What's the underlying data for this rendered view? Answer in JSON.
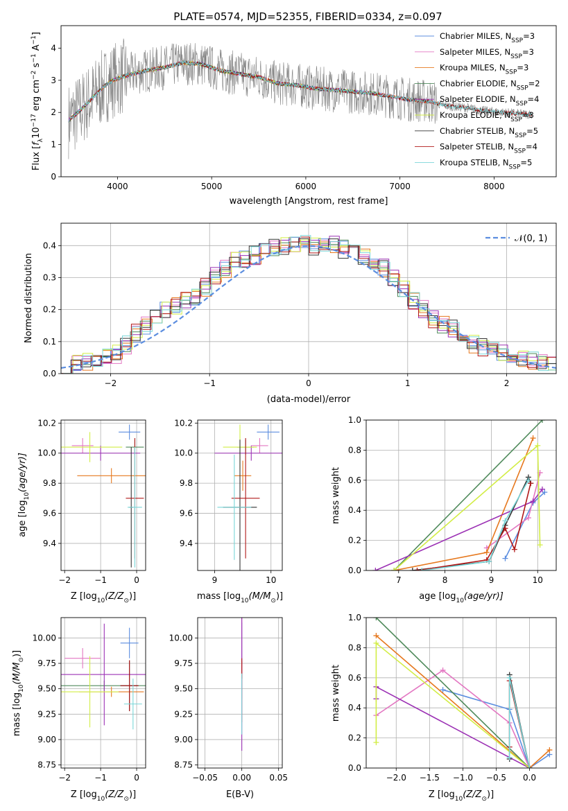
{
  "title": "PLATE=0574, MJD=52355, FIBERID=0334, z=0.097",
  "colors": {
    "chabrier_miles": "#5b8ddf",
    "salpeter_miles": "#e377c2",
    "kroupa_miles": "#e6781e",
    "chabrier_elodie": "#4f8a5b",
    "salpeter_elodie": "#9b30b4",
    "kroupa_elodie": "#d2ed45",
    "chabrier_stelib": "#333333",
    "salpeter_stelib": "#b01818",
    "kroupa_stelib": "#79d6d8",
    "data": "#808080",
    "normal": "#5b8ddf"
  },
  "legend": [
    {
      "key": "chabrier_miles",
      "label": "Chabrier MILES, N",
      "sub": "SSP",
      "suffix": "=3"
    },
    {
      "key": "salpeter_miles",
      "label": "Salpeter MILES, N",
      "sub": "SSP",
      "suffix": "=3"
    },
    {
      "key": "kroupa_miles",
      "label": "Kroupa MILES, N",
      "sub": "SSP",
      "suffix": "=3"
    },
    {
      "key": "chabrier_elodie",
      "label": "Chabrier ELODIE, N",
      "sub": "SSP",
      "suffix": "=2"
    },
    {
      "key": "salpeter_elodie",
      "label": "Salpeter ELODIE, N",
      "sub": "SSP",
      "suffix": "=4"
    },
    {
      "key": "kroupa_elodie",
      "label": "Kroupa ELODIE, N",
      "sub": "SSP",
      "suffix": "=3"
    },
    {
      "key": "chabrier_stelib",
      "label": "Chabrier STELIB, N",
      "sub": "SSP",
      "suffix": "=5"
    },
    {
      "key": "salpeter_stelib",
      "label": "Salpeter STELIB, N",
      "sub": "SSP",
      "suffix": "=4"
    },
    {
      "key": "kroupa_stelib",
      "label": "Kroupa STELIB, N",
      "sub": "SSP",
      "suffix": "=5"
    }
  ],
  "chart_data": [
    {
      "id": "spectrum",
      "type": "line",
      "title": "PLATE=0574, MJD=52355, FIBERID=0334, z=0.097",
      "xlabel": "wavelength [Angstrom, rest frame]",
      "ylabel_main": "Flux [",
      "ylabel_f": "f",
      "ylabel_sub": "λ",
      "ylabel_ten": "10",
      "ylabel_exp": "−17",
      "ylabel_rest": " erg cm",
      "ylabel_exp2": "−2",
      "ylabel_rest2": " s",
      "ylabel_exp3": "−1",
      "ylabel_rest3": " A",
      "ylabel_exp4": "−1",
      "ylabel_end": "]",
      "xlim": [
        3400,
        8660
      ],
      "ylim": [
        0,
        4.7
      ],
      "xticks": [
        4000,
        5000,
        6000,
        7000,
        8000
      ],
      "yticks": [
        0,
        1,
        2,
        3,
        4
      ],
      "continuum": [
        [
          3480,
          1.75
        ],
        [
          3560,
          1.95
        ],
        [
          3650,
          2.2
        ],
        [
          3750,
          2.5
        ],
        [
          3850,
          2.8
        ],
        [
          3950,
          3.0
        ],
        [
          4100,
          3.15
        ],
        [
          4300,
          3.3
        ],
        [
          4500,
          3.4
        ],
        [
          4700,
          3.55
        ],
        [
          4900,
          3.5
        ],
        [
          5100,
          3.3
        ],
        [
          5300,
          3.2
        ],
        [
          5500,
          3.1
        ],
        [
          5700,
          2.9
        ],
        [
          5900,
          2.85
        ],
        [
          6100,
          2.75
        ],
        [
          6300,
          2.7
        ],
        [
          6500,
          2.65
        ],
        [
          6700,
          2.6
        ],
        [
          6900,
          2.5
        ],
        [
          7100,
          2.4
        ],
        [
          7300,
          2.35
        ],
        [
          7500,
          2.2
        ],
        [
          7700,
          2.15
        ],
        [
          7900,
          2.05
        ],
        [
          8100,
          2.0
        ],
        [
          8300,
          1.95
        ],
        [
          8400,
          1.95
        ]
      ],
      "model_end": {
        "chabrier_miles": 7400,
        "salpeter_miles": 7420,
        "kroupa_miles": 7410,
        "chabrier_elodie": 6800,
        "salpeter_elodie": 6800,
        "kroupa_elodie": 6780,
        "chabrier_stelib": 8400,
        "salpeter_stelib": 8400,
        "kroupa_stelib": 8400
      }
    },
    {
      "id": "residuals",
      "type": "step",
      "xlabel": "(data-model)/error",
      "ylabel": "Normed distribution",
      "xlim": [
        -2.5,
        2.5
      ],
      "ylim": [
        0,
        0.47
      ],
      "xticks": [
        -2,
        -1,
        0,
        1,
        2
      ],
      "yticks": [
        0.0,
        0.1,
        0.2,
        0.3,
        0.4
      ],
      "legend_label": "𝒩(0, 1)",
      "envelope": [
        0.03,
        0.035,
        0.04,
        0.045,
        0.05,
        0.06,
        0.09,
        0.125,
        0.15,
        0.17,
        0.2,
        0.215,
        0.225,
        0.24,
        0.27,
        0.305,
        0.33,
        0.35,
        0.36,
        0.37,
        0.38,
        0.39,
        0.4,
        0.405,
        0.41,
        0.4,
        0.4,
        0.4,
        0.39,
        0.38,
        0.37,
        0.35,
        0.33,
        0.3,
        0.27,
        0.23,
        0.2,
        0.17,
        0.15,
        0.14,
        0.11,
        0.09,
        0.08,
        0.07,
        0.06,
        0.05,
        0.045,
        0.04,
        0.035,
        0.03
      ]
    },
    {
      "id": "age_vs_Z",
      "type": "errorbar",
      "xlabel": "Z [log",
      "xlabel_sub": "10",
      "xlabel_rest": "(Z/Z",
      "xlabel_sun": "⊙",
      "xlabel_end": ")]",
      "ylabel": "age  [log",
      "ylabel_sub": "10",
      "ylabel_rest": "(age/yr)]",
      "xlim": [
        -2.1,
        0.25
      ],
      "ylim": [
        9.22,
        10.22
      ],
      "xticks": [
        -2,
        -1,
        0
      ],
      "yticks": [
        9.4,
        9.6,
        9.8,
        10.0,
        10.2
      ],
      "points": [
        {
          "key": "chabrier_miles",
          "x": -0.2,
          "y": 10.14,
          "xerr": 0.3,
          "yerr": 0.05
        },
        {
          "key": "salpeter_miles",
          "x": -1.5,
          "y": 10.05,
          "xerr": 0.3,
          "yerr": 0.05
        },
        {
          "key": "kroupa_miles",
          "x": -0.7,
          "y": 9.85,
          "xerr": 0.95,
          "yerr": 0.05
        },
        {
          "key": "chabrier_elodie",
          "x": -0.05,
          "y": 10.04,
          "xerr": 0.25,
          "yerr": 0.05
        },
        {
          "key": "salpeter_elodie",
          "x": -1.0,
          "y": 10.0,
          "xerr": 1.1,
          "yerr": 0.05
        },
        {
          "key": "kroupa_elodie",
          "x": -1.3,
          "y": 10.04,
          "xerr": 0.9,
          "yerr": 0.1
        },
        {
          "key": "chabrier_stelib",
          "x": -0.15,
          "y": 9.64,
          "xerr": 0.05,
          "yerr": 0.4
        },
        {
          "key": "salpeter_stelib",
          "x": -0.05,
          "y": 9.7,
          "xerr": 0.25,
          "yerr": 0.4
        },
        {
          "key": "kroupa_stelib",
          "x": -0.05,
          "y": 9.64,
          "xerr": 0.2,
          "yerr": 0.4
        }
      ]
    },
    {
      "id": "age_vs_mass",
      "type": "errorbar",
      "xlabel": "mass [log",
      "xlabel_sub": "10",
      "xlabel_rest": "(M/M",
      "xlabel_sun": "⊙",
      "xlabel_end": ")]",
      "xlim": [
        8.7,
        10.2
      ],
      "ylim": [
        9.22,
        10.22
      ],
      "xticks": [
        9,
        10
      ],
      "yticks": [
        9.4,
        9.6,
        9.8,
        10.0,
        10.2
      ],
      "points": [
        {
          "key": "chabrier_miles",
          "x": 9.95,
          "y": 10.14,
          "xerr": 0.2,
          "yerr": 0.05
        },
        {
          "key": "salpeter_miles",
          "x": 9.8,
          "y": 10.05,
          "xerr": 0.15,
          "yerr": 0.05
        },
        {
          "key": "kroupa_miles",
          "x": 9.5,
          "y": 9.85,
          "xerr": 0.15,
          "yerr": 0.1
        },
        {
          "key": "chabrier_elodie",
          "x": 9.55,
          "y": 10.04,
          "xerr": 0.15,
          "yerr": 0.05
        },
        {
          "key": "salpeter_elodie",
          "x": 9.65,
          "y": 10.0,
          "xerr": 0.65,
          "yerr": 0.05
        },
        {
          "key": "kroupa_elodie",
          "x": 9.45,
          "y": 10.04,
          "xerr": 0.3,
          "yerr": 0.15
        },
        {
          "key": "chabrier_stelib",
          "x": 9.45,
          "y": 9.64,
          "xerr": 0.3,
          "yerr": 0.45
        },
        {
          "key": "salpeter_stelib",
          "x": 9.55,
          "y": 9.7,
          "xerr": 0.25,
          "yerr": 0.4
        },
        {
          "key": "kroupa_stelib",
          "x": 9.35,
          "y": 9.64,
          "xerr": 0.3,
          "yerr": 0.35
        }
      ]
    },
    {
      "id": "weight_vs_age",
      "type": "line",
      "xlabel": "age  [log",
      "xlabel_sub": "10",
      "xlabel_rest": "(age/yr)]",
      "ylabel": "mass weight",
      "xlim": [
        6.3,
        10.4
      ],
      "ylim": [
        0,
        1
      ],
      "xticks": [
        7,
        8,
        9,
        10
      ],
      "yticks": [
        0.0,
        0.2,
        0.4,
        0.6,
        0.8,
        1.0
      ],
      "series": [
        {
          "key": "chabrier_miles",
          "x": [
            9.3,
            9.9,
            10.15
          ],
          "y": [
            0.08,
            0.45,
            0.52
          ]
        },
        {
          "key": "salpeter_miles",
          "x": [
            8.9,
            9.8,
            10.05
          ],
          "y": [
            0.15,
            0.35,
            0.65
          ]
        },
        {
          "key": "kroupa_miles",
          "x": [
            6.9,
            8.9,
            9.9
          ],
          "y": [
            0.0,
            0.12,
            0.88
          ]
        },
        {
          "key": "chabrier_elodie",
          "x": [
            6.9,
            10.1
          ],
          "y": [
            0.0,
            1.0
          ]
        },
        {
          "key": "salpeter_elodie",
          "x": [
            6.5,
            9.9,
            10.1
          ],
          "y": [
            0.0,
            0.46,
            0.54
          ]
        },
        {
          "key": "kroupa_elodie",
          "x": [
            6.9,
            10.0,
            10.05
          ],
          "y": [
            0.0,
            0.83,
            0.17
          ]
        },
        {
          "key": "chabrier_stelib",
          "x": [
            7.3,
            8.95,
            9.3,
            9.8,
            9.85
          ],
          "y": [
            0.0,
            0.06,
            0.3,
            0.62,
            0.58
          ]
        },
        {
          "key": "salpeter_stelib",
          "x": [
            7.4,
            8.9,
            9.3,
            9.5,
            9.85
          ],
          "y": [
            0.0,
            0.07,
            0.28,
            0.14,
            0.58
          ]
        },
        {
          "key": "kroupa_stelib",
          "x": [
            7.5,
            8.95,
            9.3,
            9.8
          ],
          "y": [
            0.0,
            0.06,
            0.33,
            0.6
          ]
        }
      ]
    },
    {
      "id": "mass_vs_Z",
      "type": "errorbar",
      "xlabel": "Z [log",
      "xlabel_sub": "10",
      "xlabel_rest": "(Z/Z",
      "xlabel_sun": "⊙",
      "xlabel_end": ")]",
      "ylabel": "mass [log",
      "ylabel_sub": "10",
      "ylabel_rest": "(M/M",
      "ylabel_sun": "⊙",
      "ylabel_end": ")]",
      "xlim": [
        -2.1,
        0.25
      ],
      "ylim": [
        8.72,
        10.2
      ],
      "xticks": [
        -2,
        -1,
        0
      ],
      "yticks": [
        8.75,
        9.0,
        9.25,
        9.5,
        9.75,
        10.0
      ],
      "points": [
        {
          "key": "chabrier_miles",
          "x": -0.2,
          "y": 9.95,
          "xerr": 0.25,
          "yerr": 0.15
        },
        {
          "key": "salpeter_miles",
          "x": -1.5,
          "y": 9.8,
          "xerr": 0.5,
          "yerr": 0.1
        },
        {
          "key": "kroupa_miles",
          "x": -0.7,
          "y": 9.47,
          "xerr": 0.9,
          "yerr": 0.05
        },
        {
          "key": "chabrier_elodie",
          "x": -0.9,
          "y": 9.53,
          "xerr": 1.2,
          "yerr": 0.05
        },
        {
          "key": "salpeter_elodie",
          "x": -0.9,
          "y": 9.64,
          "xerr": 1.2,
          "yerr": 0.5
        },
        {
          "key": "kroupa_elodie",
          "x": -1.3,
          "y": 9.47,
          "xerr": 0.8,
          "yerr": 0.35
        },
        {
          "key": "chabrier_stelib",
          "x": -0.2,
          "y": 9.53,
          "xerr": 0.25,
          "yerr": 0.25
        },
        {
          "key": "salpeter_stelib",
          "x": -0.2,
          "y": 9.53,
          "xerr": 0.25,
          "yerr": 0.25
        },
        {
          "key": "kroupa_stelib",
          "x": -0.1,
          "y": 9.35,
          "xerr": 0.25,
          "yerr": 0.25
        }
      ]
    },
    {
      "id": "mass_vs_ebv",
      "type": "errorbar",
      "xlabel": "E(B-V)",
      "xlim": [
        -0.06,
        0.055
      ],
      "ylim": [
        8.72,
        10.2
      ],
      "xticks": [
        -0.05,
        0.0,
        0.05
      ],
      "ytick_labels": [
        8.75,
        9.0,
        9.25,
        9.5,
        9.75,
        10.0
      ],
      "points": [
        {
          "key": "chabrier_miles",
          "x": 0.0,
          "y": 9.95,
          "xerr": 0.0,
          "yerr": 0.2
        },
        {
          "key": "salpeter_miles",
          "x": 0.0,
          "y": 9.8,
          "xerr": 0.0,
          "yerr": 0.4
        },
        {
          "key": "kroupa_miles",
          "x": 0.0,
          "y": 9.47,
          "xerr": 0.0,
          "yerr": 0.3
        },
        {
          "key": "salpeter_elodie",
          "x": 0.0,
          "y": 9.64,
          "xerr": 0.0,
          "yerr": 0.75
        },
        {
          "key": "salpeter_stelib",
          "x": 0.0,
          "y": 9.7,
          "xerr": 0.0,
          "yerr": 0.1
        },
        {
          "key": "kroupa_stelib",
          "x": 0.0,
          "y": 9.35,
          "xerr": 0.0,
          "yerr": 0.3
        }
      ]
    },
    {
      "id": "weight_vs_Z",
      "type": "line",
      "xlabel": "Z [log",
      "xlabel_sub": "10",
      "xlabel_rest": "(Z/Z",
      "xlabel_sun": "⊙",
      "xlabel_end": ")]",
      "ylabel": "mass weight",
      "xlim": [
        -2.45,
        0.4
      ],
      "ylim": [
        0,
        1
      ],
      "xticks": [
        -2.0,
        -1.5,
        -1.0,
        -0.5,
        0.0
      ],
      "yticks": [
        0.0,
        0.2,
        0.4,
        0.6,
        0.8,
        1.0
      ],
      "series": [
        {
          "key": "chabrier_miles",
          "x": [
            -1.3,
            -0.3,
            0.0,
            0.3
          ],
          "y": [
            0.52,
            0.39,
            0.0,
            0.09
          ]
        },
        {
          "key": "salpeter_miles",
          "x": [
            -2.3,
            -1.3,
            -0.3,
            0.0
          ],
          "y": [
            0.35,
            0.65,
            0.3,
            0.0
          ]
        },
        {
          "key": "kroupa_miles",
          "x": [
            -2.3,
            0.0,
            0.3
          ],
          "y": [
            0.88,
            0.0,
            0.12
          ]
        },
        {
          "key": "chabrier_elodie",
          "x": [
            -2.3,
            0.0
          ],
          "y": [
            1.0,
            0.0
          ]
        },
        {
          "key": "salpeter_elodie",
          "x": [
            -2.3,
            -2.3,
            0.0
          ],
          "y": [
            0.46,
            0.54,
            0.0
          ]
        },
        {
          "key": "kroupa_elodie",
          "x": [
            -2.3,
            -2.3,
            0.0
          ],
          "y": [
            0.17,
            0.83,
            0.0
          ]
        },
        {
          "key": "chabrier_stelib",
          "x": [
            -0.3,
            -0.3,
            0.0
          ],
          "y": [
            0.06,
            0.62,
            0.0
          ]
        },
        {
          "key": "salpeter_stelib",
          "x": [
            -0.3,
            -0.3,
            0.0
          ],
          "y": [
            0.14,
            0.58,
            0.0
          ]
        },
        {
          "key": "kroupa_stelib",
          "x": [
            -0.3,
            -0.3,
            0.0
          ],
          "y": [
            0.07,
            0.6,
            0.0
          ]
        }
      ]
    }
  ]
}
